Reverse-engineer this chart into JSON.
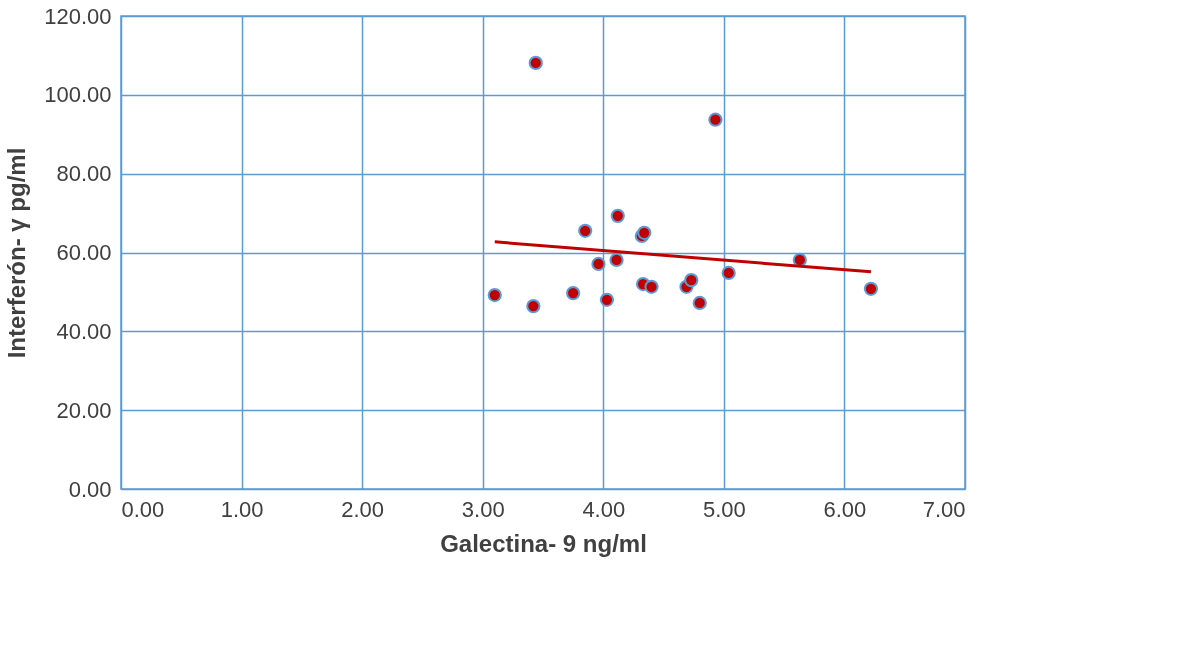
{
  "chart_data": {
    "type": "scatter",
    "xlabel": "Galectina- 9 ng/ml",
    "ylabel": "Interferón- γ  pg/ml",
    "xlim": [
      0,
      7
    ],
    "ylim": [
      0,
      120
    ],
    "xticks": [
      {
        "value": 0,
        "label": "0.00"
      },
      {
        "value": 1,
        "label": "1.00"
      },
      {
        "value": 2,
        "label": "2.00"
      },
      {
        "value": 3,
        "label": "3.00"
      },
      {
        "value": 4,
        "label": "4.00"
      },
      {
        "value": 5,
        "label": "5.00"
      },
      {
        "value": 6,
        "label": "6.00"
      },
      {
        "value": 7,
        "label": "7.00"
      }
    ],
    "yticks": [
      {
        "value": 0,
        "label": "0.00"
      },
      {
        "value": 20,
        "label": "20.00"
      },
      {
        "value": 40,
        "label": "40.00"
      },
      {
        "value": 60,
        "label": "60.00"
      },
      {
        "value": 80,
        "label": "80.00"
      },
      {
        "value": 100,
        "label": "100.00"
      },
      {
        "value": 120,
        "label": "120.00"
      }
    ],
    "grid": true,
    "series": [
      {
        "marker": "circle",
        "color": "#c00000",
        "x": [
          3.1,
          3.42,
          3.44,
          3.75,
          3.85,
          3.96,
          4.03,
          4.11,
          4.12,
          4.32,
          4.34,
          4.33,
          4.4,
          4.69,
          4.73,
          4.8,
          4.93,
          5.04,
          5.63,
          6.22
        ],
        "values": [
          49.2,
          46.4,
          108.1,
          49.7,
          65.5,
          57.1,
          48.0,
          58.1,
          69.3,
          64.2,
          65.0,
          52.0,
          51.3,
          51.3,
          53.0,
          47.2,
          93.7,
          54.8,
          58.1,
          50.8
        ]
      },
      {
        "type": "line",
        "color": "#c00000",
        "line_style": "solid",
        "x": [
          3.1,
          6.22
        ],
        "values": [
          62.7,
          55.1
        ]
      }
    ]
  }
}
